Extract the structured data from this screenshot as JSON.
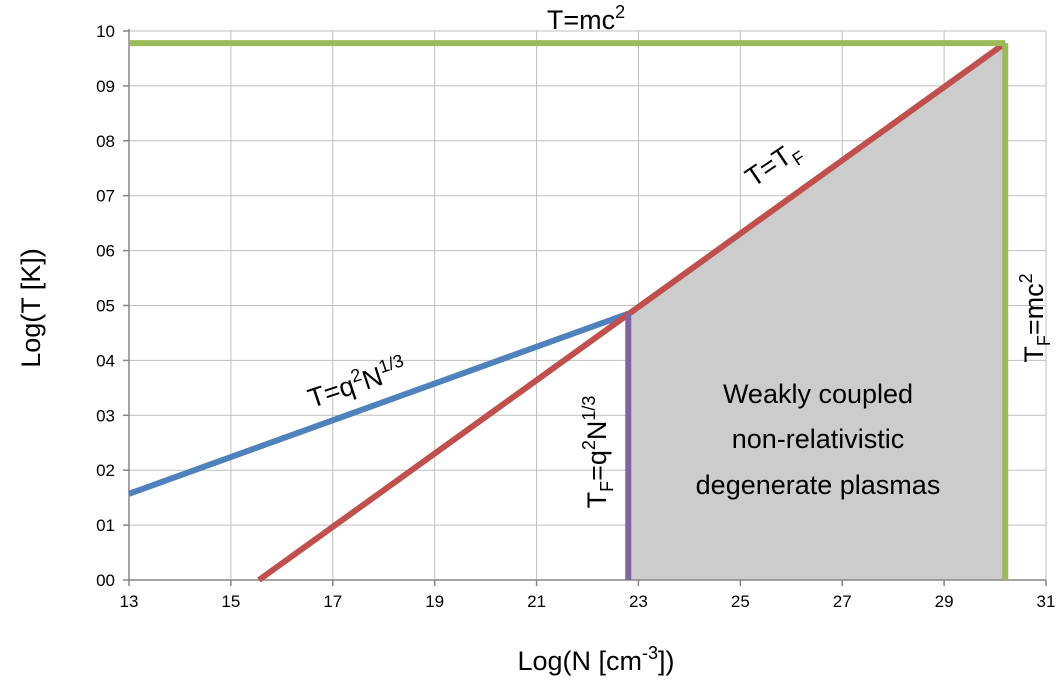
{
  "chart_data": {
    "type": "line",
    "xlabel": "Log(N [cm",
    "xlabel_sup": "-3",
    "xlabel_tail": "])",
    "ylabel": "Log(T [K])",
    "xlim": [
      13,
      31
    ],
    "ylim": [
      0,
      10
    ],
    "x_ticks": [
      "13",
      "15",
      "17",
      "19",
      "21",
      "23",
      "25",
      "27",
      "29",
      "31"
    ],
    "y_ticks": [
      "00",
      "01",
      "02",
      "03",
      "04",
      "05",
      "06",
      "07",
      "08",
      "09",
      "10"
    ],
    "grid": true,
    "colors": {
      "blue": "#4f81bd",
      "red": "#c0504d",
      "green": "#9bbb59",
      "purple": "#8064a2",
      "region_fill": "#cccccc",
      "grid": "#bfbfbf",
      "axis": "#868686"
    },
    "series": [
      {
        "key": "blue",
        "x": [
          13,
          22.8
        ],
        "y": [
          1.57,
          4.85
        ]
      },
      {
        "key": "red",
        "x": [
          15.55,
          30.2
        ],
        "y": [
          0,
          9.78
        ]
      },
      {
        "key": "green_h",
        "x": [
          13,
          30.2
        ],
        "y": [
          9.78,
          9.78
        ]
      },
      {
        "key": "green_v",
        "x": [
          30.2,
          30.2
        ],
        "y": [
          0,
          9.78
        ]
      },
      {
        "key": "purple",
        "x": [
          22.8,
          22.8
        ],
        "y": [
          0,
          4.85
        ]
      }
    ],
    "shaded_region": {
      "x": [
        22.8,
        22.8,
        30.2,
        30.2
      ],
      "y": [
        0,
        4.85,
        9.78,
        0
      ]
    },
    "annotations": {
      "top": {
        "base": "T=mc",
        "sup": "2"
      },
      "right": {
        "p1": "T",
        "sub": "F",
        "p2": "=mc",
        "sup": "2"
      },
      "diag": {
        "p1": "T=T",
        "sub": "F"
      },
      "blue": {
        "p1": "T=q",
        "sup1": "2",
        "p2": "N",
        "sup2": "1/3"
      },
      "purple": {
        "p1": "T",
        "sub": "F",
        "p2": "=q",
        "sup1": "2",
        "p3": "N",
        "sup2": "1/3"
      },
      "region": [
        "Weakly coupled",
        "non-relativistic",
        "degenerate plasmas"
      ]
    }
  }
}
